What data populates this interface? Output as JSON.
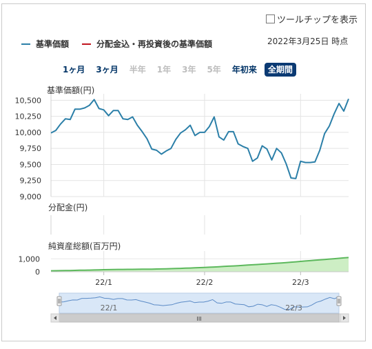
{
  "tooltip_toggle": {
    "label": "ツールチップを表示",
    "checked": false
  },
  "legend": [
    {
      "label": "基準価額",
      "color": "#2b7fa8"
    },
    {
      "label": "分配金込・再投資後の基準価額",
      "color": "#c0141e"
    }
  ],
  "as_of": "2022年3月25日 時点",
  "periods": [
    {
      "label": "1ヶ月",
      "state": "enabled"
    },
    {
      "label": "3ヶ月",
      "state": "enabled"
    },
    {
      "label": "半年",
      "state": "disabled"
    },
    {
      "label": "1年",
      "state": "disabled"
    },
    {
      "label": "3年",
      "state": "disabled"
    },
    {
      "label": "5年",
      "state": "disabled"
    },
    {
      "label": "年初来",
      "state": "enabled"
    },
    {
      "label": "全期間",
      "state": "active"
    }
  ],
  "chart_data": [
    {
      "type": "line",
      "ylabel": "基準価額(円)",
      "ylim": [
        9000,
        10600
      ],
      "yticks": [
        9000,
        9250,
        9500,
        9750,
        10000,
        10250,
        10500
      ],
      "ytick_labels": [
        "9,000",
        "9,250",
        "9,500",
        "9,750",
        "10,000",
        "10,250",
        "10,500"
      ],
      "series": [
        {
          "color": "#2b7fa8",
          "values": [
            9990,
            10030,
            10130,
            10210,
            10200,
            10360,
            10360,
            10380,
            10420,
            10510,
            10370,
            10350,
            10260,
            10340,
            10340,
            10210,
            10200,
            10240,
            10110,
            10010,
            9900,
            9740,
            9720,
            9660,
            9710,
            9750,
            9890,
            9990,
            10040,
            10110,
            9950,
            10000,
            10000,
            10090,
            10240,
            9930,
            9880,
            10010,
            10010,
            9820,
            9780,
            9750,
            9550,
            9600,
            9790,
            9740,
            9570,
            9750,
            9680,
            9510,
            9290,
            9280,
            9550,
            9530,
            9530,
            9540,
            9720,
            9980,
            10100,
            10290,
            10450,
            10330,
            10520
          ]
        }
      ]
    },
    {
      "type": "bar",
      "ylabel": "分配金(円)",
      "values": []
    },
    {
      "type": "area",
      "ylabel": "純資産総額(百万円)",
      "yticks": [
        0,
        1000
      ],
      "ytick_labels": [
        "0",
        "1,000"
      ],
      "ylim": [
        0,
        1600
      ],
      "color": "#5cb85c",
      "series": [
        {
          "values": [
            75,
            80,
            85,
            92,
            98,
            105,
            115,
            122,
            130,
            140,
            150,
            160,
            168,
            175,
            180,
            182,
            185,
            188,
            190,
            195,
            200,
            205,
            212,
            220,
            230,
            240,
            252,
            262,
            275,
            290,
            305,
            320,
            335,
            350,
            370,
            390,
            410,
            430,
            450,
            470,
            490,
            515,
            540,
            560,
            585,
            610,
            635,
            660,
            685,
            710,
            740,
            770,
            800,
            830,
            860,
            890,
            920,
            950,
            980,
            1010,
            1040,
            1070,
            1100
          ]
        }
      ]
    }
  ],
  "x_axis": {
    "tick_labels": [
      "22/1",
      "22/2",
      "22/3"
    ],
    "tick_index": [
      11,
      32,
      52
    ]
  },
  "navigator": {
    "tick_labels": [
      "22/1",
      "22/3"
    ],
    "scroll_grip": "III"
  }
}
